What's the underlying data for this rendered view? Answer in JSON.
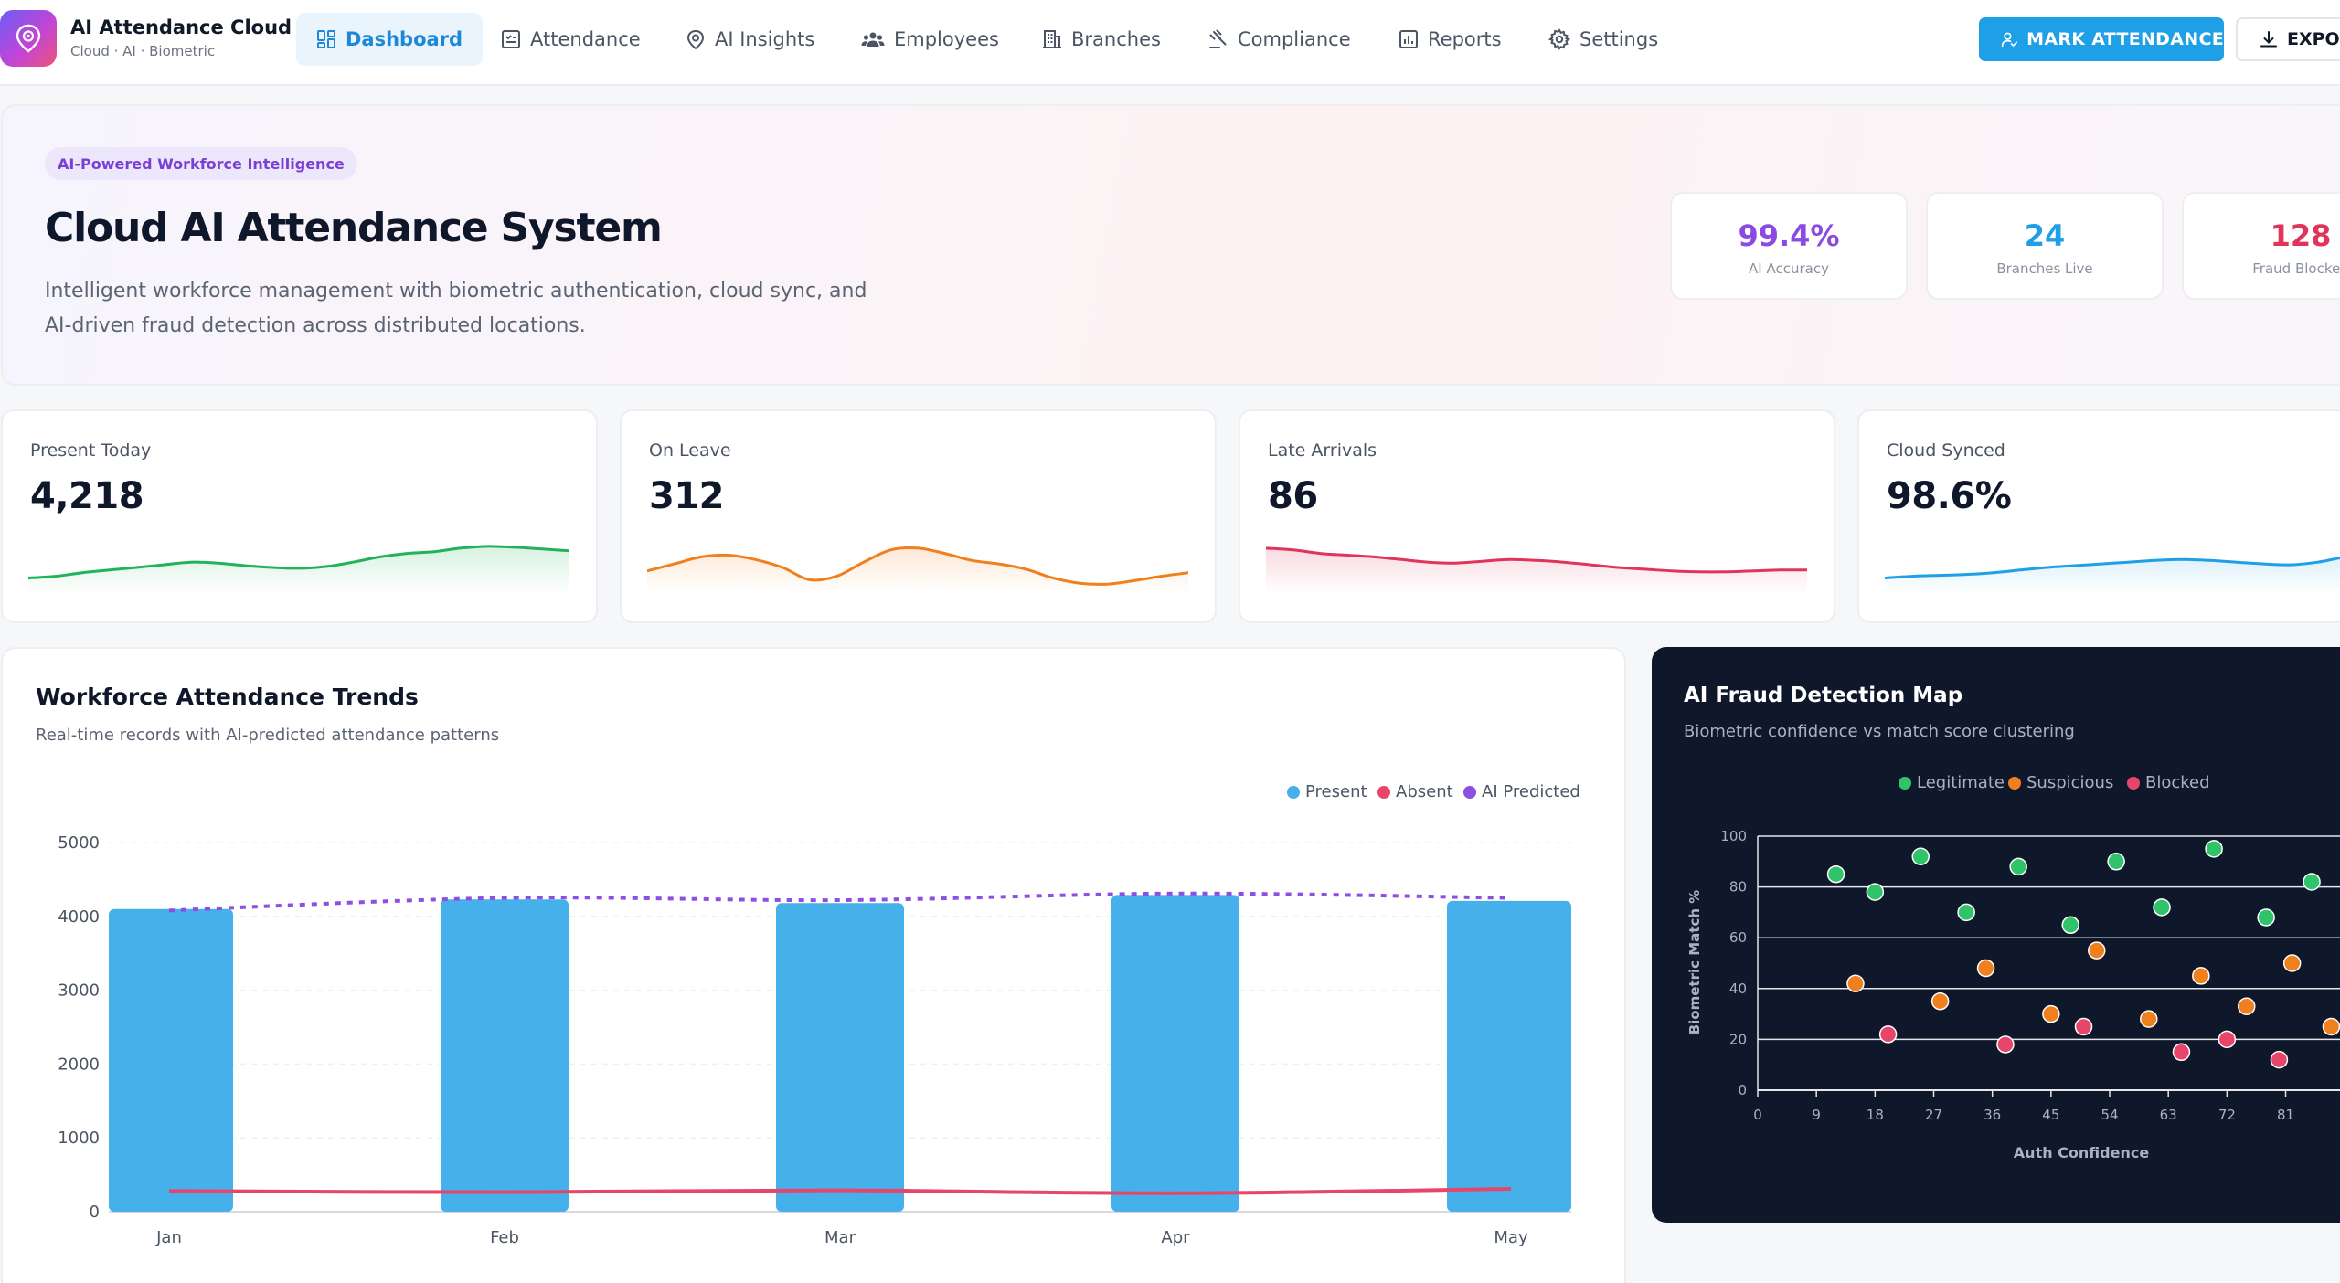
{
  "brand": {
    "title": "AI Attendance Cloud",
    "subtitle": "Cloud · AI · Biometric",
    "icon": "fingerprint-pin-icon"
  },
  "nav": {
    "items": [
      {
        "label": "Dashboard",
        "icon": "dashboard-grid-icon",
        "active": true
      },
      {
        "label": "Attendance",
        "icon": "checklist-icon"
      },
      {
        "label": "AI Insights",
        "icon": "brain-pin-icon"
      },
      {
        "label": "Employees",
        "icon": "users-icon"
      },
      {
        "label": "Branches",
        "icon": "building-icon"
      },
      {
        "label": "Compliance",
        "icon": "gavel-icon"
      },
      {
        "label": "Reports",
        "icon": "bar-report-icon"
      },
      {
        "label": "Settings",
        "icon": "gear-icon"
      }
    ],
    "mark_attendance": "MARK ATTENDANCE",
    "export": "EXPORT"
  },
  "hero": {
    "pill": "AI-Powered Workforce Intelligence",
    "title": "Cloud AI Attendance System",
    "description": "Intelligent workforce management with biometric authentication, cloud sync, and AI-driven fraud detection across distributed locations.",
    "stats": [
      {
        "value": "99.4%",
        "label": "AI Accuracy",
        "color": "#8b4be0"
      },
      {
        "value": "24",
        "label": "Branches Live",
        "color": "#1e9fe6"
      },
      {
        "value": "128",
        "label": "Fraud Blocked",
        "color": "#e0345a"
      }
    ]
  },
  "kpis": [
    {
      "label": "Present Today",
      "value": "4,218",
      "color": "#22b35a",
      "trend": [
        12,
        14,
        18,
        21,
        24,
        27,
        30,
        29,
        26,
        24,
        23,
        25,
        30,
        36,
        40,
        42,
        46,
        48,
        47,
        45,
        43
      ]
    },
    {
      "label": "On Leave",
      "value": "312",
      "color": "#f07f1d",
      "trend": [
        20,
        28,
        36,
        38,
        33,
        24,
        10,
        14,
        30,
        44,
        46,
        40,
        32,
        28,
        22,
        12,
        6,
        5,
        9,
        14,
        18
      ]
    },
    {
      "label": "Late Arrivals",
      "value": "86",
      "color": "#e0345a",
      "trend": [
        46,
        44,
        40,
        38,
        36,
        33,
        30,
        29,
        31,
        33,
        32,
        30,
        27,
        24,
        22,
        20,
        19,
        19,
        20,
        21,
        21
      ]
    },
    {
      "label": "Cloud Synced",
      "value": "98.6%",
      "color": "#1e9fe6",
      "trend": [
        12,
        14,
        15,
        16,
        18,
        21,
        24,
        26,
        28,
        30,
        32,
        33,
        32,
        30,
        28,
        27,
        30,
        36,
        41,
        44,
        45
      ]
    }
  ],
  "trends": {
    "title": "Workforce Attendance Trends",
    "subtitle": "Real-time records with AI-predicted attendance patterns",
    "chart_data": {
      "type": "bar",
      "categories": [
        "Jan",
        "Feb",
        "Mar",
        "Apr",
        "May"
      ],
      "series": [
        {
          "name": "Present",
          "type": "bar",
          "color": "#46b0ea",
          "values": [
            4100,
            4230,
            4180,
            4290,
            4210
          ]
        },
        {
          "name": "Absent",
          "type": "line",
          "color": "#e8456a",
          "values": [
            280,
            265,
            290,
            250,
            310
          ]
        },
        {
          "name": "AI Predicted",
          "type": "line",
          "dashed": true,
          "color": "#8e4fe0",
          "values": [
            4080,
            4250,
            4220,
            4310,
            4250
          ]
        }
      ],
      "yticks": [
        "0",
        "1000",
        "2000",
        "3000",
        "4000",
        "5000"
      ],
      "ylim": [
        0,
        5000
      ],
      "legend_position": "top-right"
    }
  },
  "fraud": {
    "title": "AI Fraud Detection Map",
    "subtitle": "Biometric confidence vs match score clustering",
    "chart_data": {
      "type": "scatter",
      "xlabel": "Auth Confidence",
      "ylabel": "Biometric Match %",
      "xticks": [
        "0",
        "9",
        "18",
        "27",
        "36",
        "45",
        "54",
        "63",
        "72",
        "81"
      ],
      "yticks": [
        "0",
        "20",
        "40",
        "60",
        "80",
        "100"
      ],
      "xlim": [
        0,
        90
      ],
      "ylim": [
        0,
        100
      ],
      "legend_position": "top",
      "series": [
        {
          "name": "Legitimate",
          "color": "#2fc46a",
          "points": [
            [
              12,
              85
            ],
            [
              18,
              78
            ],
            [
              25,
              92
            ],
            [
              32,
              70
            ],
            [
              40,
              88
            ],
            [
              48,
              65
            ],
            [
              55,
              90
            ],
            [
              62,
              72
            ],
            [
              70,
              95
            ],
            [
              78,
              68
            ],
            [
              85,
              82
            ]
          ]
        },
        {
          "name": "Suspicious",
          "color": "#f07f1d",
          "points": [
            [
              15,
              42
            ],
            [
              28,
              35
            ],
            [
              35,
              48
            ],
            [
              45,
              30
            ],
            [
              52,
              55
            ],
            [
              60,
              28
            ],
            [
              68,
              45
            ],
            [
              75,
              33
            ],
            [
              82,
              50
            ],
            [
              88,
              25
            ]
          ]
        },
        {
          "name": "Blocked",
          "color": "#e8456a",
          "points": [
            [
              20,
              22
            ],
            [
              38,
              18
            ],
            [
              50,
              25
            ],
            [
              65,
              15
            ],
            [
              72,
              20
            ],
            [
              80,
              12
            ]
          ]
        }
      ]
    }
  }
}
